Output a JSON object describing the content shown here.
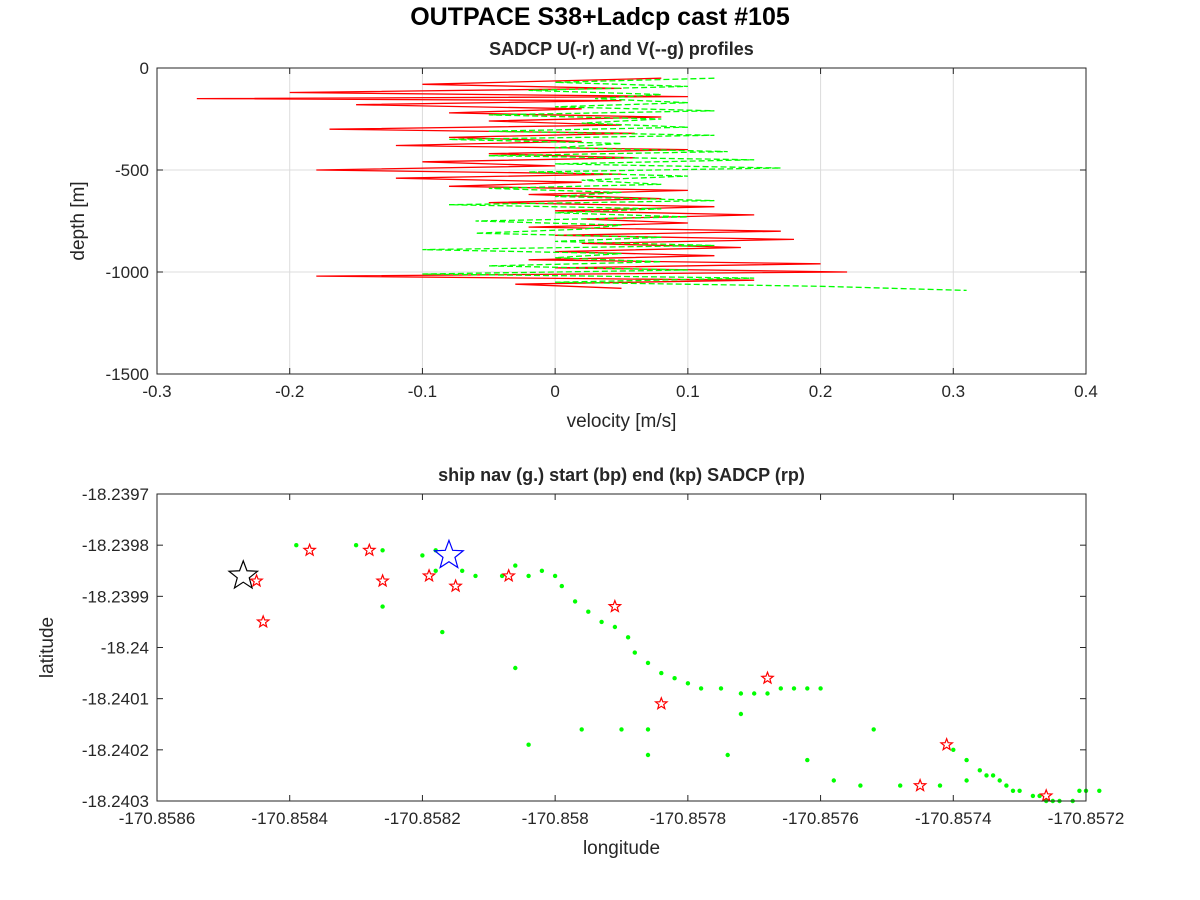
{
  "figure": {
    "title": "OUTPACE S38+Ladcp cast #105"
  },
  "chart_data": [
    {
      "type": "line",
      "title": "SADCP U(-r) and V(--g) profiles",
      "xlabel": "velocity [m/s]",
      "ylabel": "depth [m]",
      "xlim": [
        -0.3,
        0.4
      ],
      "ylim": [
        -1500,
        0
      ],
      "xticks": [
        -0.3,
        -0.2,
        -0.1,
        0,
        0.1,
        0.2,
        0.3,
        0.4
      ],
      "xtick_labels": [
        "-0.3",
        "-0.2",
        "-0.1",
        "0",
        "0.1",
        "0.2",
        "0.3",
        "0.4"
      ],
      "yticks": [
        -1500,
        -1000,
        -500,
        0
      ],
      "ytick_labels": [
        "-1500",
        "-1000",
        "-500",
        "0"
      ],
      "grid": true,
      "series": [
        {
          "color": "#ff0000",
          "style": "solid",
          "depth": [
            -50,
            -80,
            -100,
            -120,
            -140,
            -150,
            -160,
            -180,
            -200,
            -220,
            -240,
            -260,
            -280,
            -300,
            -320,
            -340,
            -360,
            -380,
            -400,
            -420,
            -440,
            -460,
            -480,
            -500,
            -520,
            -540,
            -560,
            -580,
            -600,
            -620,
            -640,
            -660,
            -680,
            -700,
            -720,
            -740,
            -760,
            -780,
            -800,
            -820,
            -840,
            -860,
            -880,
            -900,
            -920,
            -940,
            -960,
            -980,
            -1000,
            -1020,
            -1040,
            -1060,
            -1080
          ],
          "values": [
            0.08,
            -0.1,
            0.05,
            -0.2,
            0.1,
            -0.27,
            0.05,
            -0.15,
            0.02,
            -0.08,
            0.08,
            -0.05,
            0.05,
            -0.17,
            0.06,
            -0.08,
            0.02,
            -0.12,
            0.1,
            -0.05,
            0.06,
            -0.1,
            0.0,
            -0.18,
            0.05,
            -0.12,
            0.02,
            -0.08,
            0.1,
            -0.02,
            0.08,
            -0.05,
            0.12,
            0.0,
            0.15,
            0.02,
            0.1,
            -0.02,
            0.17,
            0.0,
            0.18,
            0.02,
            0.14,
            0.0,
            0.12,
            -0.02,
            0.2,
            0.0,
            0.22,
            -0.18,
            0.15,
            -0.03,
            0.05
          ]
        },
        {
          "color": "#00ff00",
          "style": "dashed",
          "depth": [
            -50,
            -70,
            -90,
            -110,
            -130,
            -150,
            -170,
            -190,
            -210,
            -230,
            -250,
            -270,
            -290,
            -310,
            -330,
            -350,
            -370,
            -390,
            -410,
            -430,
            -450,
            -470,
            -490,
            -510,
            -530,
            -550,
            -570,
            -590,
            -610,
            -630,
            -650,
            -670,
            -690,
            -710,
            -730,
            -750,
            -770,
            -790,
            -810,
            -830,
            -850,
            -870,
            -890,
            -910,
            -930,
            -950,
            -970,
            -990,
            -1010,
            -1030,
            -1050,
            -1070,
            -1090
          ],
          "values": [
            0.12,
            0.0,
            0.1,
            -0.02,
            0.08,
            0.03,
            0.1,
            0.0,
            0.12,
            -0.05,
            0.08,
            0.02,
            0.1,
            -0.05,
            0.12,
            -0.08,
            0.05,
            0.0,
            0.13,
            -0.05,
            0.15,
            0.0,
            0.17,
            -0.02,
            0.1,
            0.02,
            0.08,
            -0.05,
            0.05,
            0.0,
            0.12,
            -0.08,
            0.08,
            0.0,
            0.1,
            -0.06,
            0.05,
            0.02,
            -0.06,
            0.08,
            0.0,
            0.12,
            -0.1,
            0.05,
            0.0,
            0.08,
            -0.05,
            0.1,
            -0.1,
            0.15,
            0.0,
            0.2,
            0.31
          ]
        }
      ]
    },
    {
      "type": "scatter",
      "title": "ship nav (g.) start (bp) end (kp) SADCP (rp)",
      "xlabel": "longitude",
      "ylabel": "latitude",
      "xlim": [
        -170.8586,
        -170.8572
      ],
      "ylim": [
        -18.2403,
        -18.2397
      ],
      "xticks": [
        -170.8586,
        -170.8584,
        -170.8582,
        -170.858,
        -170.8578,
        -170.8576,
        -170.8574,
        -170.8572
      ],
      "xtick_labels": [
        "-170.8586",
        "-170.8584",
        "-170.8582",
        "-170.858",
        "-170.8578",
        "-170.8576",
        "-170.8574",
        "-170.8572"
      ],
      "yticks": [
        -18.2403,
        -18.2402,
        -18.2401,
        -18.24,
        -18.2399,
        -18.2398,
        -18.2397
      ],
      "ytick_labels": [
        "-18.2403",
        "-18.2402",
        "-18.2401",
        "-18.24",
        "-18.2399",
        "-18.2398",
        "-18.2397"
      ],
      "grid": false,
      "ship_nav": {
        "color": "#00ff00",
        "lon": [
          -170.85839,
          -170.8583,
          -170.85826,
          -170.8582,
          -170.85818,
          -170.85814,
          -170.85812,
          -170.85808,
          -170.85806,
          -170.85804,
          -170.85802,
          -170.858,
          -170.85799,
          -170.85797,
          -170.85795,
          -170.85793,
          -170.85791,
          -170.85789,
          -170.85788,
          -170.85786,
          -170.85784,
          -170.85782,
          -170.8578,
          -170.85778,
          -170.85775,
          -170.85772,
          -170.8577,
          -170.85768,
          -170.85766,
          -170.85764,
          -170.85762,
          -170.8576,
          -170.85772,
          -170.8579,
          -170.85804,
          -170.85786,
          -170.85752,
          -170.8574,
          -170.85738,
          -170.85736,
          -170.85734,
          -170.85733,
          -170.85732,
          -170.85731,
          -170.8573,
          -170.85728,
          -170.85727,
          -170.85726,
          -170.85725,
          -170.85724,
          -170.85722,
          -170.85721,
          -170.8572,
          -170.85718,
          -170.85735,
          -170.85738,
          -170.85742,
          -170.85748,
          -170.85754,
          -170.85758,
          -170.85762,
          -170.85774,
          -170.85786,
          -170.85796,
          -170.85806,
          -170.85817,
          -170.85826,
          -170.85818
        ],
        "lat": [
          -18.2398,
          -18.2398,
          -18.23981,
          -18.23982,
          -18.23981,
          -18.23985,
          -18.23986,
          -18.23986,
          -18.23984,
          -18.23986,
          -18.23985,
          -18.23986,
          -18.23988,
          -18.23991,
          -18.23993,
          -18.23995,
          -18.23996,
          -18.23998,
          -18.24001,
          -18.24003,
          -18.24005,
          -18.24006,
          -18.24007,
          -18.24008,
          -18.24008,
          -18.24009,
          -18.24009,
          -18.24009,
          -18.24008,
          -18.24008,
          -18.24008,
          -18.24008,
          -18.24013,
          -18.24016,
          -18.24019,
          -18.24016,
          -18.24016,
          -18.2402,
          -18.24022,
          -18.24024,
          -18.24025,
          -18.24026,
          -18.24027,
          -18.24028,
          -18.24028,
          -18.24029,
          -18.24029,
          -18.2403,
          -18.2403,
          -18.2403,
          -18.2403,
          -18.24028,
          -18.24028,
          -18.24028,
          -18.24025,
          -18.24026,
          -18.24027,
          -18.24027,
          -18.24027,
          -18.24026,
          -18.24022,
          -18.24021,
          -18.24021,
          -18.24016,
          -18.24004,
          -18.23997,
          -18.23992,
          -18.23985
        ]
      },
      "sadcp": {
        "color": "#ff0000",
        "lon": [
          -170.85845,
          -170.85844,
          -170.85837,
          -170.85828,
          -170.85826,
          -170.85819,
          -170.85815,
          -170.85807,
          -170.85791,
          -170.85784,
          -170.85768,
          -170.85745,
          -170.85741,
          -170.85726
        ],
        "lat": [
          -18.23987,
          -18.23995,
          -18.23981,
          -18.23981,
          -18.23987,
          -18.23986,
          -18.23988,
          -18.23986,
          -18.23992,
          -18.24011,
          -18.24006,
          -18.24027,
          -18.24019,
          -18.24029
        ]
      },
      "start": {
        "color": "#0000ff",
        "lon": -170.85816,
        "lat": -18.23982
      },
      "end": {
        "color": "#000000",
        "lon": -170.85847,
        "lat": -18.23986
      }
    }
  ]
}
